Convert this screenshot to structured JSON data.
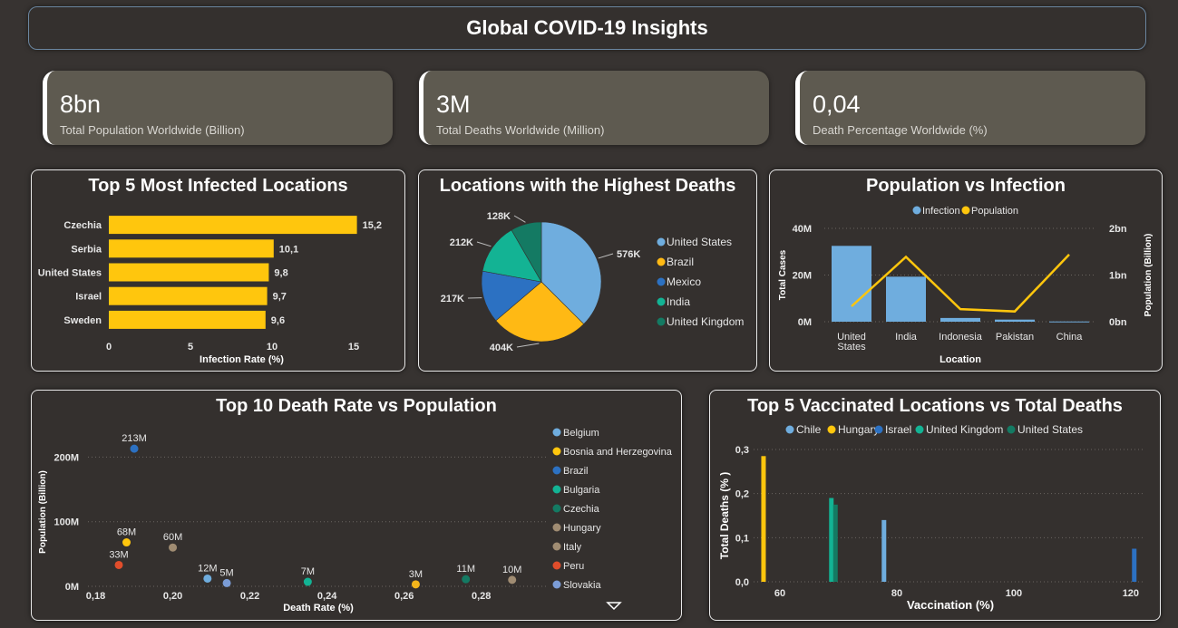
{
  "header": {
    "title": "Global COVID-19 Insights"
  },
  "kpis": [
    {
      "value": "8bn",
      "label": "Total Population Worldwide (Billion)"
    },
    {
      "value": "3M",
      "label": "Total Deaths Worldwide (Million)"
    },
    {
      "value": "0,04",
      "label": "Death Percentage Worldwide (%)"
    }
  ],
  "colors": {
    "yellow": "#ffc60d",
    "lightblue": "#6fadde",
    "blue": "#2c71c2",
    "teal": "#13b394",
    "darkteal": "#147a63",
    "tan": "#a08c72",
    "orange": "#f5b61b",
    "red": "#e04d2b",
    "lavender": "#7b9cd6"
  },
  "chart_data": [
    {
      "id": "infected",
      "type": "bar",
      "orientation": "horizontal",
      "title": "Top 5 Most Infected Locations",
      "categories": [
        "Czechia",
        "Serbia",
        "United States",
        "Israel",
        "Sweden"
      ],
      "values": [
        15.2,
        10.1,
        9.8,
        9.7,
        9.6
      ],
      "value_labels": [
        "15,2",
        "10,1",
        "9,8",
        "9,7",
        "9,6"
      ],
      "xlabel": "Infection Rate (%)",
      "xlim": [
        0,
        16.5
      ],
      "xticks": [
        0,
        5,
        10,
        15
      ],
      "xtick_labels": [
        "0",
        "5",
        "10",
        "15"
      ],
      "color": "#ffc60d"
    },
    {
      "id": "deaths",
      "type": "pie",
      "title": "Locations with the Highest Deaths",
      "labels": [
        "United States",
        "Brazil",
        "Mexico",
        "India",
        "United Kingdom"
      ],
      "values": [
        576,
        404,
        217,
        212,
        128
      ],
      "value_labels": [
        "576K",
        "404K",
        "217K",
        "212K",
        "128K"
      ],
      "colors": [
        "#6fadde",
        "#ffb914",
        "#2c71c2",
        "#13b394",
        "#147a63"
      ],
      "legend_position": "right"
    },
    {
      "id": "popinf",
      "type": "bar",
      "title": "Population vs Infection",
      "legend": [
        "Infection",
        "Population"
      ],
      "legend_colors": [
        "#6fadde",
        "#ffc60d"
      ],
      "categories": [
        "United States",
        "India",
        "Indonesia",
        "Pakistan",
        "China"
      ],
      "category_lines": [
        [
          "United",
          "States"
        ],
        [
          "India"
        ],
        [
          "Indonesia"
        ],
        [
          "Pakistan"
        ],
        [
          "China"
        ]
      ],
      "series": [
        {
          "name": "Infection",
          "type": "bar",
          "values": [
            32.5,
            19.3,
            1.6,
            0.9,
            0.1
          ]
        },
        {
          "name": "Population",
          "type": "line",
          "values": [
            0.33,
            1.39,
            0.27,
            0.22,
            1.44
          ]
        }
      ],
      "xlabel": "Location",
      "ylabel": "Total Cases",
      "y2label": "Population (Billion)",
      "ylim": [
        0,
        40
      ],
      "y2lim": [
        0,
        2
      ],
      "yticks": [
        0,
        20,
        40
      ],
      "ytick_labels": [
        "0M",
        "20M",
        "40M"
      ],
      "y2ticks": [
        0,
        1,
        2
      ],
      "y2tick_labels": [
        "0bn",
        "1bn",
        "2bn"
      ],
      "grid": true
    },
    {
      "id": "deathrate",
      "type": "scatter",
      "title": "Top 10 Death Rate vs Population",
      "xlabel": "Death Rate (%)",
      "ylabel": "Population (Billion)",
      "xlim": [
        0.178,
        0.297
      ],
      "ylim": [
        0,
        230
      ],
      "xticks": [
        0.18,
        0.2,
        0.22,
        0.24,
        0.26,
        0.28
      ],
      "xtick_labels": [
        "0,18",
        "0,20",
        "0,22",
        "0,24",
        "0,26",
        "0,28"
      ],
      "yticks": [
        0,
        100,
        200
      ],
      "ytick_labels": [
        "0M",
        "100M",
        "200M"
      ],
      "grid": true,
      "legend_position": "right",
      "points": [
        {
          "name": "Brazil",
          "x": 0.19,
          "y": 213,
          "label": "213M",
          "color": "#2c71c2"
        },
        {
          "name": "Bosnia and Herzegovina",
          "x": 0.188,
          "y": 68,
          "label": "68M",
          "color": "#ffc60d"
        },
        {
          "name": "Peru",
          "x": 0.186,
          "y": 33,
          "label": "33M",
          "color": "#e04d2b"
        },
        {
          "name": "Italy",
          "x": 0.2,
          "y": 60,
          "label": "60M",
          "color": "#a08c72"
        },
        {
          "name": "Belgium",
          "x": 0.209,
          "y": 12,
          "label": "12M",
          "color": "#6fadde"
        },
        {
          "name": "Slovakia",
          "x": 0.214,
          "y": 5,
          "label": "5M",
          "color": "#7b9cd6"
        },
        {
          "name": "Bulgaria",
          "x": 0.235,
          "y": 7,
          "label": "7M",
          "color": "#13b394"
        },
        {
          "name": "Hungary",
          "x": 0.263,
          "y": 3,
          "label": "3M",
          "color": "#f5b61b"
        },
        {
          "name": "Czechia",
          "x": 0.276,
          "y": 11,
          "label": "11M",
          "color": "#147a63"
        },
        {
          "name": "Hungary",
          "x": 0.288,
          "y": 10,
          "label": "10M",
          "color": "#a08c72"
        }
      ],
      "legend": [
        {
          "name": "Belgium",
          "color": "#6fadde"
        },
        {
          "name": "Bosnia and Herzegovina",
          "color": "#ffc60d"
        },
        {
          "name": "Brazil",
          "color": "#2c71c2"
        },
        {
          "name": "Bulgaria",
          "color": "#13b394"
        },
        {
          "name": "Czechia",
          "color": "#147a63"
        },
        {
          "name": "Hungary",
          "color": "#a08c72"
        },
        {
          "name": "Italy",
          "color": "#a08c72"
        },
        {
          "name": "Peru",
          "color": "#e04d2b"
        },
        {
          "name": "Slovakia",
          "color": "#7b9cd6"
        }
      ]
    },
    {
      "id": "vaccinated",
      "type": "bar",
      "title": "Top 5 Vaccinated Locations vs Total Deaths",
      "xlabel": "Vaccination (%)",
      "ylabel": "Total Deaths (% )",
      "xlim": [
        55.5,
        122.5
      ],
      "ylim": [
        0,
        0.3
      ],
      "xticks": [
        60,
        80,
        100,
        120
      ],
      "xtick_labels": [
        "60",
        "80",
        "100",
        "120"
      ],
      "yticks": [
        0,
        0.1,
        0.2,
        0.3
      ],
      "ytick_labels": [
        "0,0",
        "0,1",
        "0,2",
        "0,3"
      ],
      "grid": true,
      "legend": [
        "Chile",
        "Hungary",
        "Israel",
        "United Kingdom",
        "United States"
      ],
      "legend_colors": [
        "#6fadde",
        "#ffc60d",
        "#2c71c2",
        "#13b394",
        "#147a63"
      ],
      "bars": [
        {
          "name": "Hungary",
          "x": 57.2,
          "y": 0.285,
          "color": "#ffc60d"
        },
        {
          "name": "United Kingdom",
          "x": 68.8,
          "y": 0.19,
          "color": "#13b394"
        },
        {
          "name": "United States",
          "x": 69.5,
          "y": 0.175,
          "color": "#147a63"
        },
        {
          "name": "Chile",
          "x": 77.8,
          "y": 0.14,
          "color": "#6fadde"
        },
        {
          "name": "Israel",
          "x": 120.6,
          "y": 0.075,
          "color": "#2c71c2"
        }
      ]
    }
  ]
}
